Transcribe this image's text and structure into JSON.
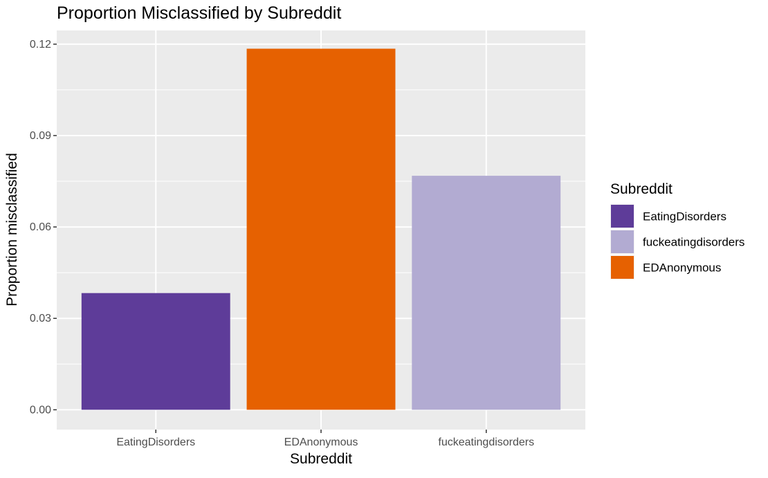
{
  "chart_data": {
    "type": "bar",
    "title": "Proportion Misclassified by Subreddit",
    "xlabel": "Subreddit",
    "ylabel": "Proportion misclassified",
    "categories": [
      "EatingDisorders",
      "EDAnonymous",
      "fuckeatingdisorders"
    ],
    "values": [
      0.0383,
      0.1185,
      0.0768
    ],
    "bar_colors": [
      "#5e3c99",
      "#e66101",
      "#b2abd2"
    ],
    "ylim": [
      -0.0065,
      0.1245
    ],
    "y_ticks": [
      0.0,
      0.03,
      0.06,
      0.09,
      0.12
    ],
    "y_tick_labels": [
      "0.00",
      "0.03",
      "0.06",
      "0.09",
      "0.12"
    ],
    "grid": true,
    "panel_background": "#ebebeb",
    "grid_color": "#ffffff",
    "legend": {
      "title": "Subreddit",
      "position": "right",
      "entries": [
        {
          "label": "EatingDisorders",
          "color": "#5e3c99"
        },
        {
          "label": "fuckeatingdisorders",
          "color": "#b2abd2"
        },
        {
          "label": "EDAnonymous",
          "color": "#e66101"
        }
      ]
    }
  }
}
